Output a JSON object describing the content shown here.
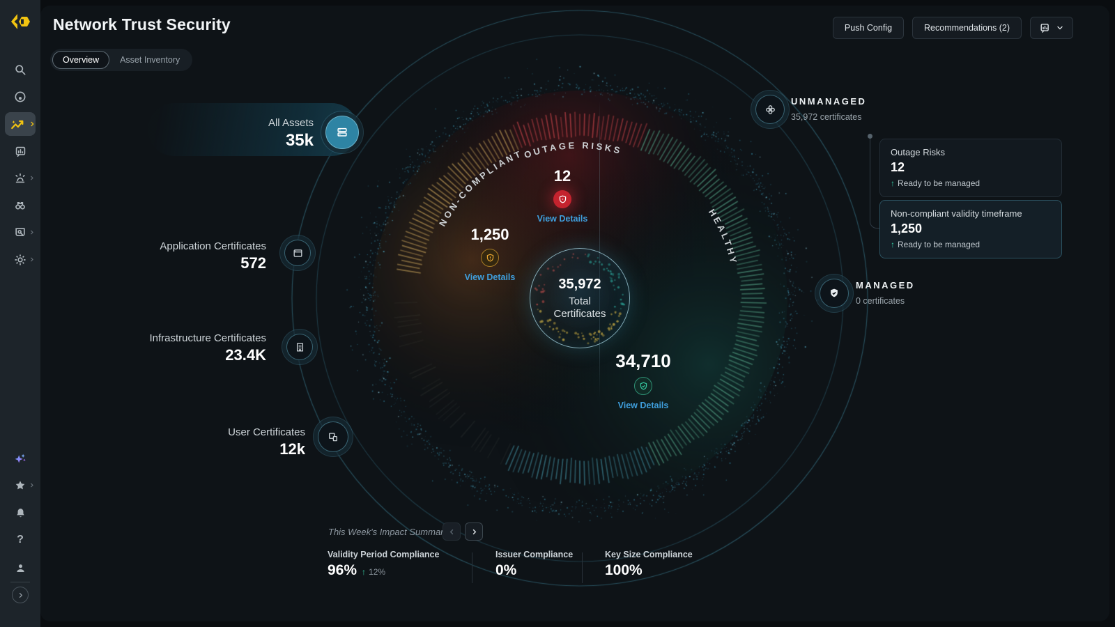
{
  "app": {
    "title": "Network Trust Security"
  },
  "header": {
    "buttons": [
      {
        "label": "Push Config"
      },
      {
        "label": "Recommendations (2)"
      }
    ],
    "menu_icon": "dashboard-board-icon",
    "menu_chevron": "chevron-down-icon"
  },
  "tabs": [
    {
      "label": "Overview",
      "active": true
    },
    {
      "label": "Asset Inventory",
      "active": false
    }
  ],
  "sidebar": {
    "icons": [
      "brand-logo",
      "search-icon",
      "radar-icon",
      "trust-map-icon",
      "reports-icon",
      "alerts-icon",
      "discovery-icon",
      "remediation-icon",
      "settings-icon",
      "ai-assistant-icon",
      "favorites-icon",
      "notifications-icon",
      "help-icon",
      "account-icon",
      "expand-icon"
    ],
    "help_glyph": "?"
  },
  "assets": [
    {
      "label": "All Assets",
      "value": "35k",
      "icon": "server-icon"
    },
    {
      "label": "Application Certificates",
      "value": "572",
      "icon": "app-window-icon"
    },
    {
      "label": "Infrastructure Certificates",
      "value": "23.4K",
      "icon": "building-icon"
    },
    {
      "label": "User Certificates",
      "value": "12k",
      "icon": "devices-icon"
    }
  ],
  "radial": {
    "center": {
      "value": "35,972",
      "line1": "Total",
      "line2": "Certificates"
    },
    "noncompliant": {
      "label": "NON-COMPLIANT",
      "value": "1,250",
      "link": "View Details"
    },
    "outage": {
      "label": "OUTAGE RISKS",
      "value": "12",
      "link": "View Details"
    },
    "healthy": {
      "label": "HEALTHY",
      "value": "34,710",
      "link": "View Details"
    }
  },
  "management": {
    "unmanaged": {
      "label": "UNMANAGED",
      "sub": "35,972 certificates"
    },
    "managed": {
      "label": "MANAGED",
      "sub": "0 certificates"
    },
    "cards": [
      {
        "title": "Outage Risks",
        "value": "12",
        "note": "Ready to be managed"
      },
      {
        "title": "Non-compliant validity timeframe",
        "value": "1,250",
        "note": "Ready to be managed"
      }
    ],
    "up_glyph": "↑"
  },
  "impact": {
    "title": "This Week's Impact Summary",
    "prev_glyph": "‹",
    "next_glyph": "›",
    "stats": [
      {
        "label": "Validity Period Compliance",
        "value": "96%",
        "delta": "12%"
      },
      {
        "label": "Issuer Compliance",
        "value": "0%",
        "delta": ""
      },
      {
        "label": "Key Size Compliance",
        "value": "100%",
        "delta": ""
      }
    ],
    "delta_up_glyph": "↑"
  },
  "colors": {
    "brand": "#f2c411",
    "accent": "#39b7d8",
    "risk": "#c4232e",
    "warn": "#d98a2b",
    "ok": "#2fbf8f",
    "link": "#3f9fdd"
  }
}
